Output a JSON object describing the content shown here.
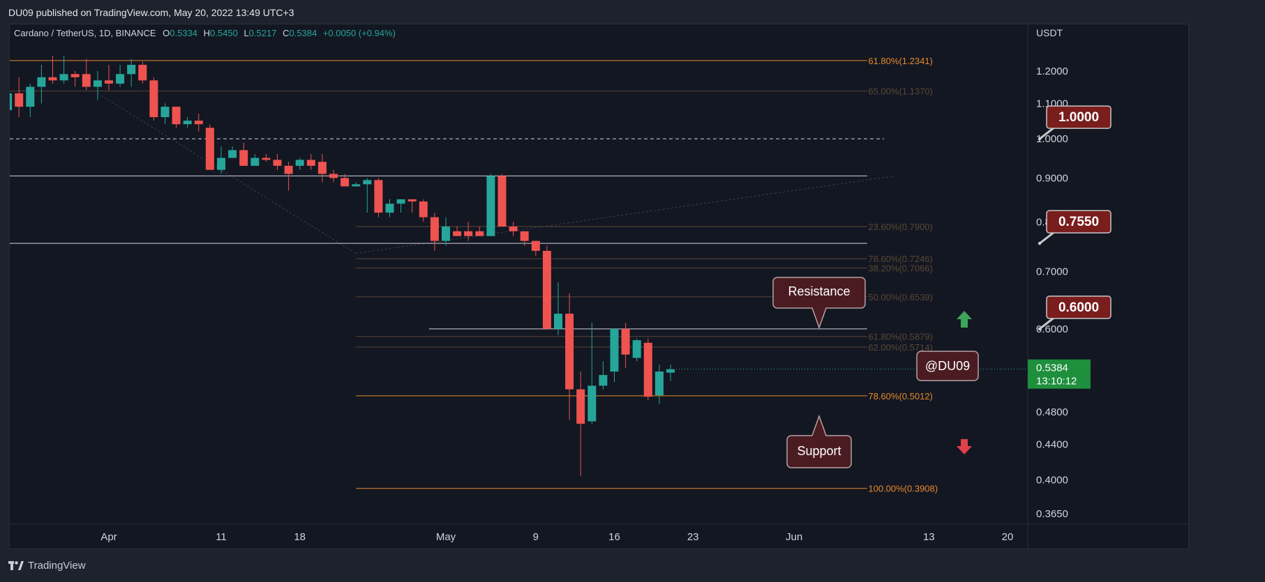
{
  "caption": "DU09 published on TradingView.com, May 20, 2022 13:49 UTC+3",
  "brand": "TradingView",
  "legend": {
    "symbol": "Cardano / TetherUS, 1D, BINANCE",
    "o_label": "O",
    "o": "0.5334",
    "h_label": "H",
    "h": "0.5450",
    "l_label": "L",
    "l": "0.5217",
    "c_label": "C",
    "c": "0.5384",
    "change": "+0.0050 (+0.94%)"
  },
  "price_axis": {
    "unit": "USDT",
    "current_price": "0.5384",
    "countdown": "13:10:12",
    "up_color": "#26a69a",
    "current_color": "#1e8f3d"
  },
  "chart_data": {
    "type": "candlestick",
    "scale": "log",
    "ylim": [
      0.355,
      1.36
    ],
    "yticks": [
      1.2,
      1.1,
      1.0,
      0.9,
      0.8,
      0.7,
      0.6,
      0.48,
      0.44,
      0.4,
      0.365
    ],
    "ytick_labels": [
      "1.2000",
      "1.1000",
      "1.0000",
      "0.9000",
      "0.8000",
      "0.7000",
      "0.6000",
      "0.4800",
      "0.4400",
      "0.4000",
      "0.3650"
    ],
    "xticks": [
      {
        "label": "Apr",
        "day": 0
      },
      {
        "label": "11",
        "day": 10
      },
      {
        "label": "18",
        "day": 17
      },
      {
        "label": "May",
        "day": 30
      },
      {
        "label": "9",
        "day": 38
      },
      {
        "label": "16",
        "day": 45
      },
      {
        "label": "23",
        "day": 52
      },
      {
        "label": "Jun",
        "day": 61
      },
      {
        "label": "13",
        "day": 73
      },
      {
        "label": "20",
        "day": 80
      }
    ],
    "candles": [
      {
        "day": -10,
        "o": 0.92,
        "h": 1.22,
        "l": 0.91,
        "c": 1.08
      },
      {
        "day": -9,
        "o": 1.08,
        "h": 1.18,
        "l": 1.06,
        "c": 1.13
      },
      {
        "day": -8,
        "o": 1.13,
        "h": 1.18,
        "l": 1.06,
        "c": 1.09
      },
      {
        "day": -7,
        "o": 1.09,
        "h": 1.16,
        "l": 1.06,
        "c": 1.15
      },
      {
        "day": -6,
        "o": 1.15,
        "h": 1.22,
        "l": 1.1,
        "c": 1.18
      },
      {
        "day": -5,
        "o": 1.18,
        "h": 1.25,
        "l": 1.16,
        "c": 1.17
      },
      {
        "day": -4,
        "o": 1.17,
        "h": 1.25,
        "l": 1.16,
        "c": 1.19
      },
      {
        "day": -3,
        "o": 1.19,
        "h": 1.2,
        "l": 1.15,
        "c": 1.18
      },
      {
        "day": -2,
        "o": 1.19,
        "h": 1.24,
        "l": 1.14,
        "c": 1.15
      },
      {
        "day": -1,
        "o": 1.15,
        "h": 1.2,
        "l": 1.11,
        "c": 1.17
      },
      {
        "day": 0,
        "o": 1.17,
        "h": 1.22,
        "l": 1.14,
        "c": 1.16
      },
      {
        "day": 1,
        "o": 1.16,
        "h": 1.22,
        "l": 1.15,
        "c": 1.19
      },
      {
        "day": 2,
        "o": 1.19,
        "h": 1.24,
        "l": 1.15,
        "c": 1.22
      },
      {
        "day": 3,
        "o": 1.22,
        "h": 1.23,
        "l": 1.16,
        "c": 1.17
      },
      {
        "day": 4,
        "o": 1.17,
        "h": 1.18,
        "l": 1.05,
        "c": 1.06
      },
      {
        "day": 5,
        "o": 1.06,
        "h": 1.1,
        "l": 1.04,
        "c": 1.09
      },
      {
        "day": 6,
        "o": 1.09,
        "h": 1.09,
        "l": 1.03,
        "c": 1.04
      },
      {
        "day": 7,
        "o": 1.04,
        "h": 1.06,
        "l": 1.03,
        "c": 1.05
      },
      {
        "day": 8,
        "o": 1.05,
        "h": 1.07,
        "l": 1.02,
        "c": 1.04
      },
      {
        "day": 9,
        "o": 1.03,
        "h": 1.04,
        "l": 0.92,
        "c": 0.92
      },
      {
        "day": 10,
        "o": 0.92,
        "h": 0.98,
        "l": 0.91,
        "c": 0.95
      },
      {
        "day": 11,
        "o": 0.95,
        "h": 0.98,
        "l": 0.95,
        "c": 0.97
      },
      {
        "day": 12,
        "o": 0.97,
        "h": 0.99,
        "l": 0.93,
        "c": 0.93
      },
      {
        "day": 13,
        "o": 0.93,
        "h": 0.96,
        "l": 0.93,
        "c": 0.95
      },
      {
        "day": 14,
        "o": 0.95,
        "h": 0.96,
        "l": 0.94,
        "c": 0.945
      },
      {
        "day": 15,
        "o": 0.945,
        "h": 0.96,
        "l": 0.92,
        "c": 0.93
      },
      {
        "day": 16,
        "o": 0.93,
        "h": 0.94,
        "l": 0.87,
        "c": 0.91
      },
      {
        "day": 17,
        "o": 0.93,
        "h": 0.95,
        "l": 0.92,
        "c": 0.945
      },
      {
        "day": 18,
        "o": 0.945,
        "h": 0.96,
        "l": 0.92,
        "c": 0.93
      },
      {
        "day": 19,
        "o": 0.94,
        "h": 0.96,
        "l": 0.89,
        "c": 0.91
      },
      {
        "day": 20,
        "o": 0.91,
        "h": 0.92,
        "l": 0.89,
        "c": 0.9
      },
      {
        "day": 21,
        "o": 0.9,
        "h": 0.91,
        "l": 0.88,
        "c": 0.88
      },
      {
        "day": 22,
        "o": 0.88,
        "h": 0.89,
        "l": 0.88,
        "c": 0.885
      },
      {
        "day": 23,
        "o": 0.885,
        "h": 0.9,
        "l": 0.82,
        "c": 0.895
      },
      {
        "day": 24,
        "o": 0.895,
        "h": 0.9,
        "l": 0.81,
        "c": 0.82
      },
      {
        "day": 25,
        "o": 0.82,
        "h": 0.85,
        "l": 0.81,
        "c": 0.84
      },
      {
        "day": 26,
        "o": 0.84,
        "h": 0.85,
        "l": 0.82,
        "c": 0.85
      },
      {
        "day": 27,
        "o": 0.85,
        "h": 0.85,
        "l": 0.82,
        "c": 0.845
      },
      {
        "day": 28,
        "o": 0.845,
        "h": 0.85,
        "l": 0.8,
        "c": 0.81
      },
      {
        "day": 29,
        "o": 0.81,
        "h": 0.82,
        "l": 0.74,
        "c": 0.76
      },
      {
        "day": 30,
        "o": 0.76,
        "h": 0.81,
        "l": 0.75,
        "c": 0.79
      },
      {
        "day": 31,
        "o": 0.78,
        "h": 0.79,
        "l": 0.77,
        "c": 0.77
      },
      {
        "day": 32,
        "o": 0.78,
        "h": 0.8,
        "l": 0.76,
        "c": 0.77
      },
      {
        "day": 33,
        "o": 0.78,
        "h": 0.79,
        "l": 0.77,
        "c": 0.77
      },
      {
        "day": 34,
        "o": 0.77,
        "h": 0.91,
        "l": 0.77,
        "c": 0.905
      },
      {
        "day": 35,
        "o": 0.905,
        "h": 0.91,
        "l": 0.79,
        "c": 0.79
      },
      {
        "day": 36,
        "o": 0.79,
        "h": 0.8,
        "l": 0.77,
        "c": 0.78
      },
      {
        "day": 37,
        "o": 0.78,
        "h": 0.78,
        "l": 0.75,
        "c": 0.76
      },
      {
        "day": 38,
        "o": 0.76,
        "h": 0.76,
        "l": 0.73,
        "c": 0.74
      },
      {
        "day": 39,
        "o": 0.74,
        "h": 0.75,
        "l": 0.6,
        "c": 0.6
      },
      {
        "day": 40,
        "o": 0.6,
        "h": 0.68,
        "l": 0.59,
        "c": 0.625
      },
      {
        "day": 41,
        "o": 0.625,
        "h": 0.66,
        "l": 0.47,
        "c": 0.51
      },
      {
        "day": 42,
        "o": 0.51,
        "h": 0.535,
        "l": 0.404,
        "c": 0.465
      },
      {
        "day": 43,
        "o": 0.468,
        "h": 0.61,
        "l": 0.465,
        "c": 0.515
      },
      {
        "day": 44,
        "o": 0.515,
        "h": 0.55,
        "l": 0.51,
        "c": 0.53
      },
      {
        "day": 45,
        "o": 0.535,
        "h": 0.6,
        "l": 0.52,
        "c": 0.6
      },
      {
        "day": 46,
        "o": 0.6,
        "h": 0.61,
        "l": 0.54,
        "c": 0.56
      },
      {
        "day": 47,
        "o": 0.555,
        "h": 0.585,
        "l": 0.55,
        "c": 0.582
      },
      {
        "day": 48,
        "o": 0.578,
        "h": 0.585,
        "l": 0.495,
        "c": 0.5
      },
      {
        "day": 49,
        "o": 0.502,
        "h": 0.545,
        "l": 0.49,
        "c": 0.535
      },
      {
        "day": 50,
        "o": 0.5334,
        "h": 0.545,
        "l": 0.5217,
        "c": 0.5384
      }
    ],
    "horizontal_lines": [
      {
        "value": 1.0,
        "style": "dashed",
        "color": "#d1d4dc"
      },
      {
        "value": 0.905,
        "style": "solid",
        "color": "#d1d4dc"
      },
      {
        "value": 0.755,
        "style": "solid",
        "color": "#d1d4dc"
      },
      {
        "value": 0.6,
        "style": "solid",
        "color": "#d1d4dc"
      }
    ],
    "fib_levels": [
      {
        "label": "61.80%(1.2341)",
        "value": 1.2341,
        "color": "#e8892a",
        "style": "full"
      },
      {
        "label": "65.00%(1.1370)",
        "value": 1.137,
        "color": "#5a4734",
        "style": "full"
      },
      {
        "label": "23.60%(0.7900)",
        "value": 0.79,
        "color": "#5a4734",
        "style": "partial"
      },
      {
        "label": "78.60%(0.7246)",
        "value": 0.7246,
        "color": "#5a4734",
        "style": "partial"
      },
      {
        "label": "38.20%(0.7066)",
        "value": 0.7066,
        "color": "#5a4734",
        "style": "partial"
      },
      {
        "label": "50.00%(0.6539)",
        "value": 0.6539,
        "color": "#5a4734",
        "style": "partial"
      },
      {
        "label": "61.80%(0.5879)",
        "value": 0.5879,
        "color": "#5a4734",
        "style": "partial"
      },
      {
        "label": "62.00%(0.5714)",
        "value": 0.5714,
        "color": "#5a4734",
        "style": "partial"
      },
      {
        "label": "78.60%(0.5012)",
        "value": 0.5012,
        "color": "#e8892a",
        "style": "partial"
      },
      {
        "label": "100.00%(0.3908)",
        "value": 0.3908,
        "color": "#e8892a",
        "style": "partial"
      }
    ],
    "price_tags": [
      {
        "label": "1.0000",
        "value": 1.0
      },
      {
        "label": "0.7550",
        "value": 0.755
      },
      {
        "label": "0.6000",
        "value": 0.6
      }
    ],
    "callouts": [
      {
        "label": "Resistance",
        "anchor_value": 0.605
      },
      {
        "label": "Support",
        "anchor_value": 0.498
      }
    ],
    "watermark_label": "@DU09",
    "colors": {
      "up": "#26a69a",
      "down": "#ef5350",
      "tag_bg": "#7a1d1d",
      "callout_bg": "#4a1c22",
      "arrow_up": "#3da35a",
      "arrow_down": "#e0404a"
    }
  }
}
